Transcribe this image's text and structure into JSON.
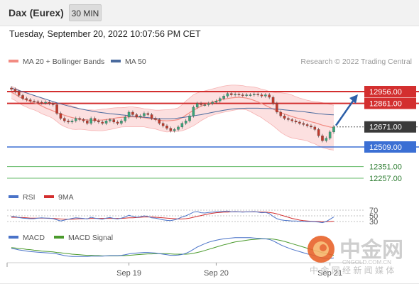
{
  "header": {
    "instrument": "Dax (Eurex)",
    "timeframe": "30 MIN"
  },
  "timestamp": "Tuesday, September 20, 2022 10:07:56 PM CET",
  "copyright": "Research © 2022 Trading Central",
  "watermark": {
    "brand_cn": "中金网",
    "url": "CNGOLD.COM.CN",
    "tagline": "中 金 网 经 新 闻 媒 体"
  },
  "colors": {
    "resistance": "#d32f2f",
    "support": "#3b6fd4",
    "target": "#66bb6a",
    "ma20": "#f28b82",
    "ma50": "#4a6a9e",
    "bollinger_fill": "#fbd6d6",
    "up_candle": "#3aa57a",
    "down_candle": "#c0392b",
    "arrow": "#2c5fa8",
    "rsi": "#4a73c8",
    "rsi_ma": "#d32f2f",
    "macd": "#4a73c8",
    "macd_signal": "#4a9a2c"
  },
  "chart_data": [
    {
      "type": "candlestick",
      "legend": [
        "MA 20 + Bollinger Bands",
        "MA 50"
      ],
      "legend_placement": "top-left",
      "x_ticks": [
        "Sep 19",
        "Sep 20",
        "Sep 21"
      ],
      "ylim": [
        12180,
        13100
      ],
      "levels": [
        {
          "value": 12956.0,
          "label": "12956.00",
          "kind": "resistance"
        },
        {
          "value": 12861.0,
          "label": "12861.00",
          "kind": "resistance"
        },
        {
          "value": 12671.0,
          "label": "12671.00",
          "kind": "last"
        },
        {
          "value": 12509.0,
          "label": "12509.00",
          "kind": "support"
        },
        {
          "value": 12351.0,
          "label": "12351.00",
          "kind": "target"
        },
        {
          "value": 12257.0,
          "label": "12257.00",
          "kind": "target"
        }
      ],
      "close": [
        12975,
        12955,
        12925,
        12900,
        12890,
        12880,
        12875,
        12870,
        12865,
        12870,
        12860,
        12850,
        12780,
        12740,
        12720,
        12710,
        12720,
        12740,
        12730,
        12720,
        12700,
        12740,
        12720,
        12710,
        12700,
        12720,
        12730,
        12710,
        12700,
        12720,
        12750,
        12790,
        12770,
        12750,
        12760,
        12780,
        12770,
        12740,
        12730,
        12700,
        12680,
        12660,
        12640,
        12650,
        12670,
        12700,
        12720,
        12760,
        12830,
        12860,
        12850,
        12850,
        12860,
        12870,
        12880,
        12900,
        12920,
        12940,
        12930,
        12935,
        12930,
        12925,
        12930,
        12930,
        12935,
        12930,
        12920,
        12930,
        12910,
        12860,
        12790,
        12760,
        12740,
        12730,
        12720,
        12710,
        12700,
        12690,
        12680,
        12670,
        12650,
        12600,
        12560,
        12580,
        12630,
        12671
      ],
      "ma20": [
        12950,
        12935,
        12915,
        12900,
        12888,
        12876,
        12865,
        12855,
        12840,
        12825,
        12812,
        12800,
        12787,
        12775,
        12765,
        12755,
        12746,
        12740,
        12735,
        12730,
        12727,
        12725,
        12724,
        12725,
        12727,
        12730,
        12735,
        12740,
        12745,
        12748,
        12750,
        12752,
        12752,
        12750,
        12748,
        12745,
        12740,
        12735,
        12730,
        12725,
        12722,
        12720,
        12722,
        12725,
        12730,
        12745,
        12765,
        12785,
        12805,
        12822,
        12838,
        12850,
        12862,
        12872,
        12880,
        12888,
        12895,
        12900,
        12905,
        12908,
        12910,
        12908,
        12903,
        12895,
        12885,
        12873,
        12860,
        12845,
        12830,
        12815,
        12800,
        12787,
        12775,
        12765,
        12755,
        12745,
        12737,
        12730,
        12722,
        12712,
        12705,
        12695,
        12685,
        12678,
        12670,
        12665
      ],
      "ma50": [
        12985,
        12975,
        12965,
        12955,
        12945,
        12935,
        12925,
        12915,
        12905,
        12895,
        12885,
        12875,
        12866,
        12857,
        12848,
        12840,
        12832,
        12825,
        12818,
        12812,
        12806,
        12800,
        12795,
        12790,
        12786,
        12782,
        12778,
        12775,
        12772,
        12768,
        12765,
        12762,
        12758,
        12755,
        12752,
        12749,
        12746,
        12743,
        12740,
        12738,
        12736,
        12736,
        12736,
        12738,
        12742,
        12746,
        12750,
        12755,
        12760,
        12765,
        12770,
        12776,
        12782,
        12788,
        12794,
        12800,
        12805,
        12810,
        12815,
        12818,
        12820,
        12821,
        12822,
        12822,
        12822,
        12822,
        12821,
        12820,
        12819,
        12817,
        12815,
        12812,
        12809,
        12806,
        12803,
        12800,
        12797,
        12794,
        12790,
        12786,
        12782,
        12778,
        12775,
        12772,
        12770,
        12768
      ],
      "bollinger_upper": [
        13000,
        12985,
        12968,
        12955,
        12945,
        12935,
        12922,
        12915,
        12902,
        12885,
        12870,
        12862,
        12860,
        12860,
        12856,
        12848,
        12840,
        12830,
        12818,
        12810,
        12808,
        12808,
        12806,
        12810,
        12814,
        12816,
        12820,
        12824,
        12826,
        12826,
        12828,
        12832,
        12832,
        12828,
        12824,
        12818,
        12815,
        12810,
        12806,
        12806,
        12808,
        12810,
        12812,
        12816,
        12825,
        12850,
        12880,
        12905,
        12930,
        12945,
        12955,
        12962,
        12970,
        12978,
        12985,
        12993,
        13000,
        13005,
        13008,
        13008,
        13007,
        13004,
        12997,
        12995,
        12992,
        12985,
        12975,
        12968,
        12958,
        12950,
        12946,
        12946,
        12942,
        12938,
        12928,
        12914,
        12904,
        12895,
        12886,
        12880,
        12876,
        12872,
        12866,
        12860,
        12852,
        12846
      ],
      "bollinger_lower": [
        12900,
        12885,
        12862,
        12845,
        12831,
        12817,
        12808,
        12795,
        12778,
        12765,
        12754,
        12738,
        12714,
        12690,
        12674,
        12662,
        12652,
        12650,
        12652,
        12650,
        12646,
        12642,
        12642,
        12640,
        12640,
        12644,
        12650,
        12656,
        12664,
        12670,
        12672,
        12672,
        12672,
        12672,
        12672,
        12672,
        12665,
        12660,
        12654,
        12644,
        12636,
        12630,
        12632,
        12634,
        12635,
        12640,
        12650,
        12665,
        12680,
        12699,
        12721,
        12738,
        12754,
        12766,
        12775,
        12783,
        12790,
        12795,
        12802,
        12808,
        12813,
        12812,
        12809,
        12795,
        12778,
        12761,
        12745,
        12722,
        12702,
        12680,
        12654,
        12628,
        12608,
        12592,
        12582,
        12576,
        12570,
        12565,
        12558,
        12544,
        12534,
        12518,
        12504,
        12496,
        12488,
        12484
      ]
    },
    {
      "type": "line",
      "legend": [
        "RSI",
        "9MA"
      ],
      "y_ticks": [
        70,
        50,
        30
      ],
      "ylim": [
        20,
        80
      ],
      "rsi": [
        48,
        47,
        44,
        42,
        41,
        40,
        40,
        42,
        43,
        42,
        42,
        40,
        36,
        32,
        35,
        38,
        41,
        43,
        42,
        41,
        39,
        45,
        42,
        40,
        38,
        42,
        44,
        41,
        39,
        42,
        46,
        52,
        48,
        45,
        47,
        50,
        48,
        43,
        42,
        39,
        36,
        34,
        33,
        36,
        40,
        46,
        50,
        56,
        63,
        65,
        61,
        60,
        62,
        63,
        64,
        65,
        66,
        67,
        64,
        65,
        64,
        63,
        64,
        64,
        65,
        63,
        61,
        62,
        58,
        48,
        40,
        36,
        34,
        33,
        32,
        32,
        31,
        31,
        30,
        30,
        29,
        28,
        26,
        30,
        38,
        46
      ],
      "ma9": [
        45,
        45,
        44,
        44,
        43,
        42,
        42,
        42,
        42,
        42,
        41,
        41,
        40,
        39,
        38,
        38,
        38,
        39,
        40,
        40,
        40,
        41,
        41,
        41,
        41,
        41,
        41,
        41,
        41,
        41,
        42,
        43,
        43,
        44,
        45,
        46,
        46,
        46,
        45,
        44,
        43,
        42,
        41,
        40,
        39,
        39,
        40,
        42,
        45,
        48,
        51,
        54,
        57,
        59,
        61,
        62,
        63,
        63,
        64,
        64,
        64,
        64,
        64,
        64,
        64,
        64,
        63,
        63,
        62,
        60,
        57,
        53,
        49,
        45,
        41,
        38,
        35,
        33,
        32,
        31,
        30,
        30,
        29,
        29,
        30,
        31
      ]
    },
    {
      "type": "line",
      "legend": [
        "MACD",
        "MACD Signal"
      ],
      "ylim": [
        -80,
        55
      ],
      "macd": [
        -5,
        -7,
        -10,
        -12,
        -14,
        -16,
        -17,
        -18,
        -19,
        -20,
        -21,
        -22,
        -24,
        -27,
        -30,
        -32,
        -33,
        -33,
        -33,
        -33,
        -33,
        -32,
        -32,
        -32,
        -32,
        -31,
        -30,
        -30,
        -30,
        -29,
        -27,
        -24,
        -22,
        -21,
        -20,
        -19,
        -19,
        -20,
        -21,
        -23,
        -25,
        -27,
        -29,
        -29,
        -28,
        -26,
        -22,
        -16,
        -8,
        0,
        6,
        12,
        17,
        21,
        24,
        27,
        29,
        31,
        32,
        33,
        33,
        33,
        33,
        33,
        32,
        31,
        30,
        29,
        27,
        22,
        15,
        8,
        2,
        -3,
        -8,
        -12,
        -16,
        -20,
        -24,
        -27,
        -30,
        -34,
        -38,
        -40,
        -40,
        -38
      ],
      "signal": [
        -2,
        -3,
        -5,
        -6,
        -8,
        -9,
        -11,
        -12,
        -14,
        -15,
        -16,
        -17,
        -19,
        -20,
        -22,
        -23,
        -25,
        -26,
        -27,
        -28,
        -29,
        -29,
        -30,
        -30,
        -31,
        -31,
        -31,
        -31,
        -31,
        -30,
        -30,
        -29,
        -28,
        -27,
        -26,
        -25,
        -24,
        -24,
        -23,
        -23,
        -23,
        -23,
        -24,
        -25,
        -25,
        -25,
        -25,
        -24,
        -22,
        -19,
        -16,
        -12,
        -8,
        -4,
        0,
        4,
        8,
        11,
        15,
        18,
        20,
        22,
        24,
        26,
        27,
        28,
        29,
        29,
        29,
        28,
        26,
        23,
        20,
        16,
        12,
        8,
        4,
        0,
        -4,
        -8,
        -12,
        -16,
        -20,
        -23,
        -26,
        -29
      ]
    }
  ]
}
